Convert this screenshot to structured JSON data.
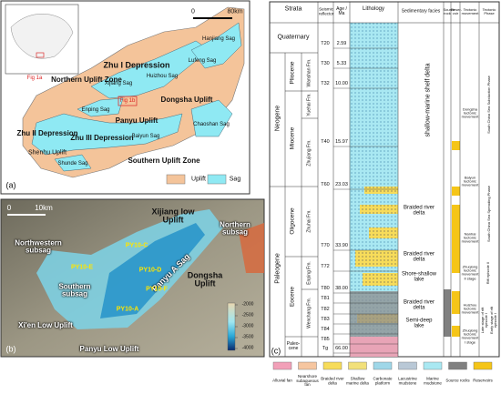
{
  "panel_a": {
    "label": "(a)",
    "labels": [
      "Northern Uplift Zone",
      "Zhu I Depression",
      "Xijiang Sag",
      "Huizhou Sag",
      "Lufeng Sag",
      "Hanjiang Sag",
      "Dongsha Uplift",
      "Enping Sag",
      "Fig 1b",
      "Panyu Uplift",
      "Zhu II Depression",
      "Zhu III Depression",
      "Shenhu Uplift",
      "Baiyun Sag",
      "Chaoshan Sag",
      "Shunde Sag",
      "Southern Uplift Zone",
      "Fig 1a"
    ],
    "scale": [
      "0",
      "80km"
    ],
    "legend": [
      "Uplift",
      "Sag"
    ]
  },
  "panel_b": {
    "label": "(b)",
    "scale": [
      "0",
      "10km"
    ],
    "labels": [
      "Xijiang low Uplift",
      "Northern subsag",
      "Northwestern subsag",
      "Southern subsag",
      "Panyu A Sag",
      "Dongsha Uplift",
      "Xi'en Low Uplift",
      "Panyu Low Uplift"
    ],
    "wells": [
      "PY10-C",
      "PY10-E",
      "PY10-D",
      "PY10-F",
      "PY10-A"
    ],
    "colorbar_ticks": [
      -2000,
      -2500,
      -3000,
      -3500,
      -4000
    ]
  },
  "panel_c": {
    "label": "(c)",
    "headers": [
      "Strata",
      "Seismic reflector",
      "Age / Ma",
      "Lithology",
      "Sedimentary facies",
      "Source rock",
      "Reser-voir",
      "Tectonic movement",
      "Tectonic Phase"
    ],
    "periods": [
      "Quaternary",
      "Neogene",
      "Paleogene"
    ],
    "epochs": [
      "Pliocene",
      "Miocene",
      "Oligocene",
      "Eocene",
      "Paleo-cene"
    ],
    "formations": [
      "Wanshan Fm.",
      "Yuehai Fm.",
      "Zhujiang Fm.",
      "Zhuhai Fm.",
      "Enping Fm.",
      "Wenchang Fm."
    ],
    "reflectors": [
      "T20",
      "T30",
      "T32",
      "T40",
      "T60",
      "T70",
      "T72",
      "T80",
      "T81",
      "T82",
      "T83",
      "T84",
      "T85",
      "Tg"
    ],
    "ages": [
      "2.59",
      "5.33",
      "10.00",
      "15.97",
      "23.03",
      "33.90",
      "38.00",
      "66.00"
    ],
    "facies": [
      "shallow-marine shelf delta",
      "Braided river delta",
      "Braided river delta",
      "Shore-shallow lake",
      "Braided river delta",
      "Semi-deep lake"
    ],
    "movements": [
      "Dongsha tectonic movement",
      "Baiyun tectonic movement",
      "Nanhai tectonic movement",
      "Zhuqiong tectonic movement II stage",
      "Huizhou tectonic movement",
      "Zhuqiong tectonic movement I stage"
    ],
    "phases": [
      "South China Sea Subduction Phase",
      "South China Sea Spreading Phase",
      "Rift episode II",
      "Late stage of rift episode I",
      "Early stage of rift episode I"
    ],
    "legend": [
      "Alluvial fan",
      "Nearshore subaqueous fan",
      "Braided river delta",
      "Shallow marine delta",
      "Carbonate platform",
      "Lacustrine mudstone",
      "Marine mudstone",
      "Source rocks",
      "Reservoirs"
    ]
  }
}
